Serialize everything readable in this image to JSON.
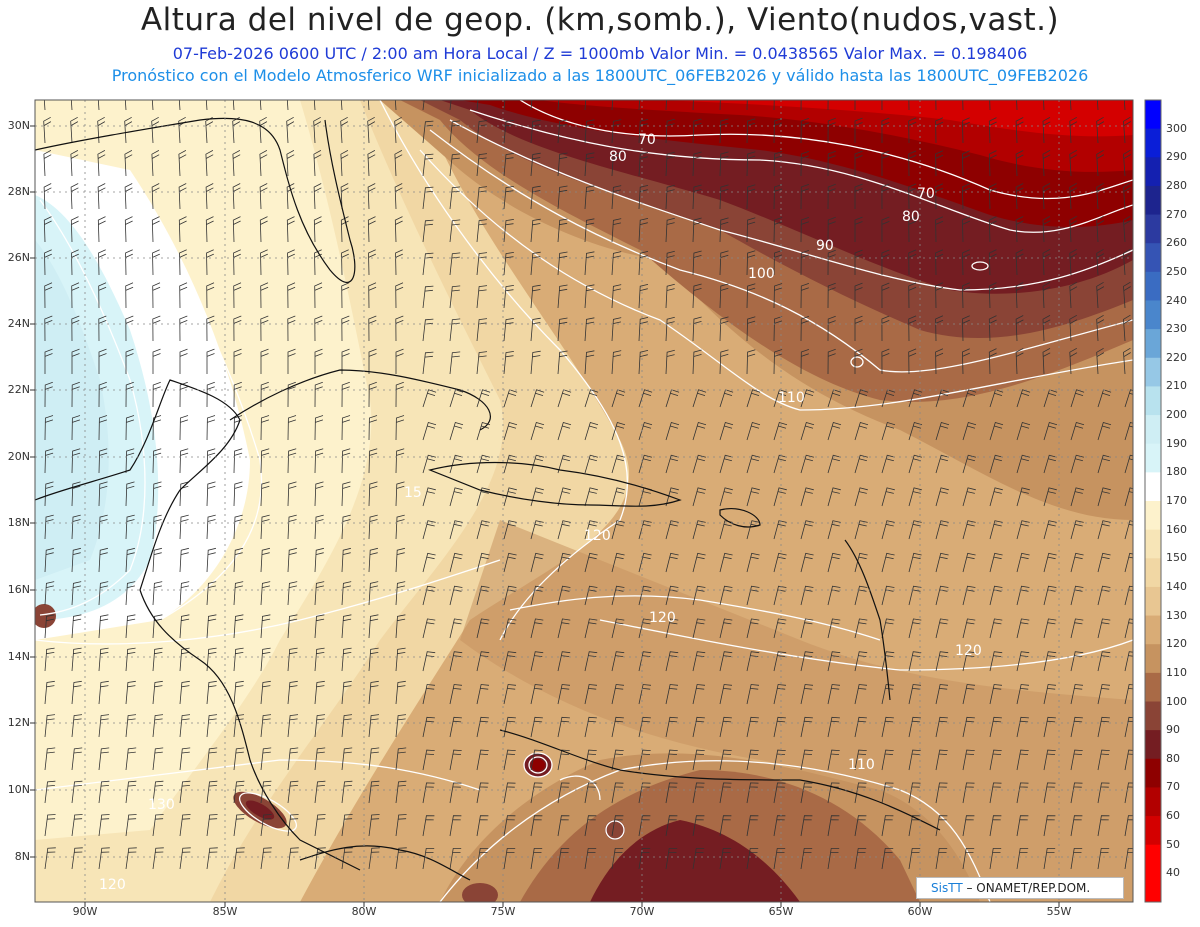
{
  "header": {
    "title": "Altura del nivel de geop. (km,somb.), Viento(nudos,vast.)",
    "subtitle1": "07-Feb-2026  0600 UTC / 2:00 am Hora Local / Z = 1000mb  Valor Min. = 0.0438565   Valor Max. = 0.198406",
    "subtitle2": "Pronóstico con el Modelo Atmosferico WRF inicializado a las 1800UTC_06FEB2026 y válido hasta las   1800UTC_09FEB2026"
  },
  "map": {
    "lat_labels": [
      "30N",
      "28N",
      "26N",
      "24N",
      "22N",
      "20N",
      "18N",
      "16N",
      "14N",
      "12N",
      "10N",
      "8N"
    ],
    "lon_labels": [
      "90W",
      "85W",
      "80W",
      "75W",
      "70W",
      "65W",
      "60W",
      "55W"
    ],
    "contour_labels": [
      "70",
      "80",
      "70",
      "80",
      "90",
      "100",
      "110",
      "120",
      "120",
      "120",
      "110",
      "130",
      "120",
      "15"
    ]
  },
  "colorbar": {
    "labels": [
      "300",
      "290",
      "280",
      "270",
      "260",
      "250",
      "240",
      "230",
      "220",
      "210",
      "200",
      "190",
      "180",
      "170",
      "160",
      "150",
      "140",
      "130",
      "120",
      "110",
      "100",
      "90",
      "80",
      "70",
      "60",
      "50",
      "40"
    ],
    "colors": [
      "#0000ff",
      "#0a1ed8",
      "#1420b0",
      "#1d248e",
      "#2c3aa0",
      "#3554b4",
      "#3a6cc2",
      "#4a86cc",
      "#6aa6d8",
      "#96c8e6",
      "#b8e2ee",
      "#cfeef4",
      "#d8f4f8",
      "#ffffff",
      "#fdf2cc",
      "#f7e5b7",
      "#f1d7a4",
      "#e8c692",
      "#d9ac76",
      "#c69360",
      "#a96a46",
      "#8a4436",
      "#741d22",
      "#8e0000",
      "#b20000",
      "#d40000",
      "#ff0000"
    ]
  },
  "credit": {
    "brand": "SisTT",
    "text": " – ONAMET/REP.DOM."
  }
}
